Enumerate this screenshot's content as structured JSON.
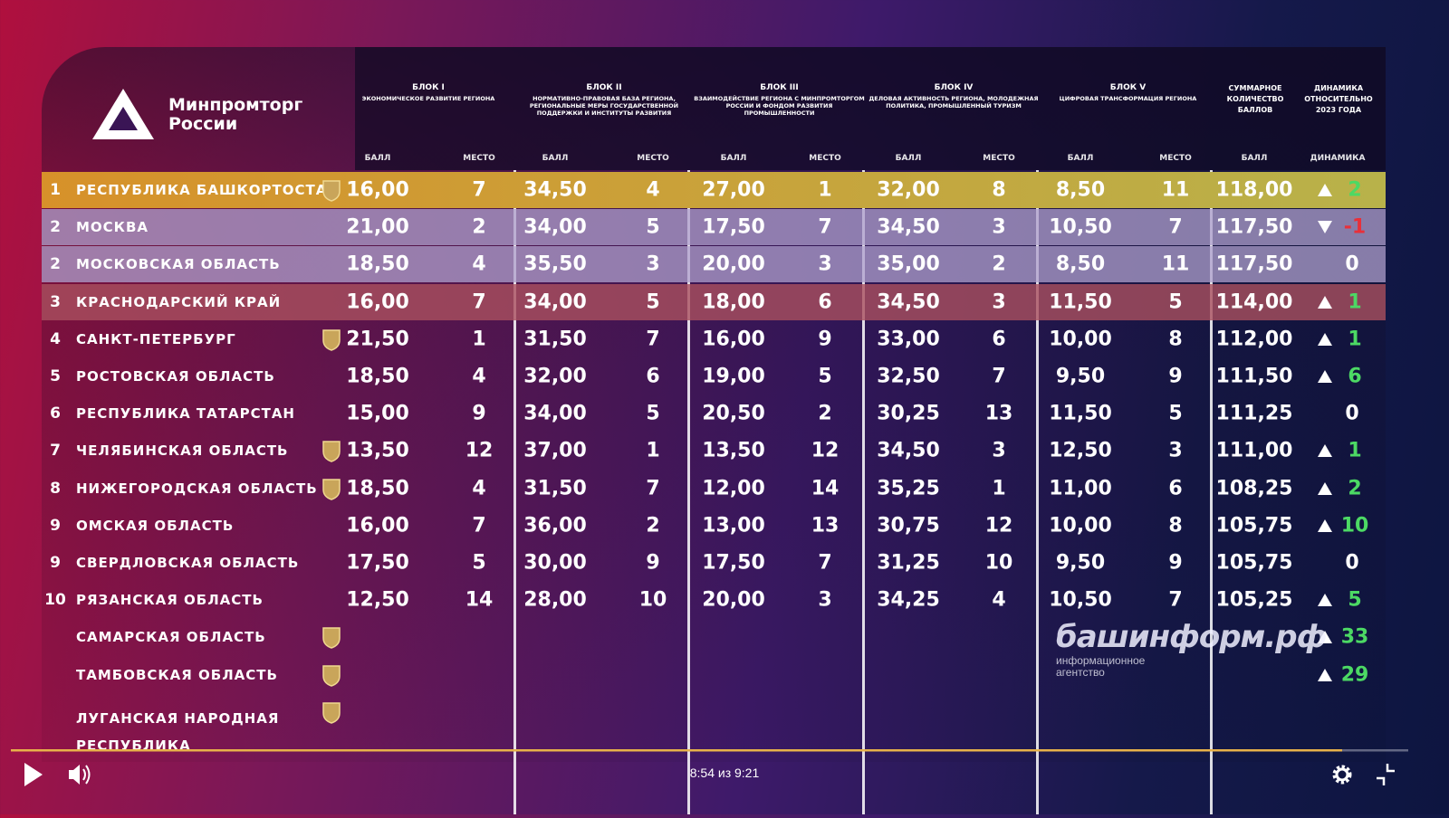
{
  "logo": {
    "line1": "Минпромторг",
    "line2": "России"
  },
  "watermark": {
    "name": "башинформ.рф",
    "tagline": "информационное агентство"
  },
  "player": {
    "time": "8:54 из 9:21"
  },
  "table": {
    "blocks": [
      {
        "title": "БЛОК I",
        "subtitle": "ЭКОНОМИЧЕСКОЕ РАЗВИТИЕ РЕГИОНА"
      },
      {
        "title": "БЛОК II",
        "subtitle": "НОРМАТИВНО-ПРАВОВАЯ БАЗА РЕГИОНА, РЕГИОНАЛЬНЫЕ МЕРЫ ГОСУДАРСТВЕННОЙ ПОДДЕРЖКИ И ИНСТИТУТЫ РАЗВИТИЯ"
      },
      {
        "title": "БЛОК III",
        "subtitle": "ВЗАИМОДЕЙСТВИЕ РЕГИОНА С МИНПРОМТОРГОМ РОССИИ И ФОНДОМ РАЗВИТИЯ ПРОМЫШЛЕННОСТИ"
      },
      {
        "title": "БЛОК IV",
        "subtitle": "ДЕЛОВАЯ АКТИВНОСТЬ РЕГИОНА, МОЛОДЕЖНАЯ ПОЛИТИКА, ПРОМЫШЛЕННЫЙ ТУРИЗМ"
      },
      {
        "title": "БЛОК V",
        "subtitle": "ЦИФРОВАЯ ТРАНСФОРМАЦИЯ РЕГИОНА"
      }
    ],
    "total_header": "СУММАРНОЕ КОЛИЧЕСТВО БАЛЛОВ",
    "dynamics_header": "ДИНАМИКА ОТНОСИТЕЛЬНО 2023 ГОДА",
    "subheaders": [
      "БАЛЛ",
      "МЕСТО",
      "БАЛЛ",
      "МЕСТО",
      "БАЛЛ",
      "МЕСТО",
      "БАЛЛ",
      "МЕСТО",
      "БАЛЛ",
      "МЕСТО",
      "БАЛЛ",
      "ДИНАМИКА"
    ],
    "rows": [
      {
        "rank": 1,
        "name": "РЕСПУБЛИКА БАШКОРТОСТАН",
        "scores": [
          "16,00",
          7,
          "34,50",
          4,
          "27,00",
          1,
          "32,00",
          8,
          "8,50",
          11,
          "118,00"
        ],
        "dynamics": 2
      },
      {
        "rank": 2,
        "name": "МОСКВА",
        "scores": [
          "21,00",
          2,
          "34,00",
          5,
          "17,50",
          7,
          "34,50",
          3,
          "10,50",
          7,
          "117,50"
        ],
        "dynamics": -1
      },
      {
        "rank": 2,
        "name": "МОСКОВСКАЯ ОБЛАСТЬ",
        "scores": [
          "18,50",
          4,
          "35,50",
          3,
          "20,00",
          3,
          "35,00",
          2,
          "8,50",
          11,
          "117,50"
        ],
        "dynamics": 0
      },
      {
        "rank": 3,
        "name": "КРАСНОДАРСКИЙ КРАЙ",
        "scores": [
          "16,00",
          7,
          "34,00",
          5,
          "18,00",
          6,
          "34,50",
          3,
          "11,50",
          5,
          "114,00"
        ],
        "dynamics": 1
      },
      {
        "rank": 4,
        "name": "САНКТ-ПЕТЕРБУРГ",
        "scores": [
          "21,50",
          1,
          "31,50",
          7,
          "16,00",
          9,
          "33,00",
          6,
          "10,00",
          8,
          "112,00"
        ],
        "dynamics": 1
      },
      {
        "rank": 5,
        "name": "РОСТОВСКАЯ ОБЛАСТЬ",
        "scores": [
          "18,50",
          4,
          "32,00",
          6,
          "19,00",
          5,
          "32,50",
          7,
          "9,50",
          9,
          "111,50"
        ],
        "dynamics": 6
      },
      {
        "rank": 6,
        "name": "РЕСПУБЛИКА ТАТАРСТАН",
        "scores": [
          "15,00",
          9,
          "34,00",
          5,
          "20,50",
          2,
          "30,25",
          13,
          "11,50",
          5,
          "111,25"
        ],
        "dynamics": 0
      },
      {
        "rank": 7,
        "name": "ЧЕЛЯБИНСКАЯ ОБЛАСТЬ",
        "scores": [
          "13,50",
          12,
          "37,00",
          1,
          "13,50",
          12,
          "34,50",
          3,
          "12,50",
          3,
          "111,00"
        ],
        "dynamics": 1
      },
      {
        "rank": 8,
        "name": "НИЖЕГОРОДСКАЯ ОБЛАСТЬ",
        "scores": [
          "18,50",
          4,
          "31,50",
          7,
          "12,00",
          14,
          "35,25",
          1,
          "11,00",
          6,
          "108,25"
        ],
        "dynamics": 2
      },
      {
        "rank": 9,
        "name": "ОМСКАЯ ОБЛАСТЬ",
        "scores": [
          "16,00",
          7,
          "36,00",
          2,
          "13,00",
          13,
          "30,75",
          12,
          "10,00",
          8,
          "105,75"
        ],
        "dynamics": 10
      },
      {
        "rank": 9,
        "name": "СВЕРДЛОВСКАЯ ОБЛАСТЬ",
        "scores": [
          "17,50",
          5,
          "30,00",
          9,
          "17,50",
          7,
          "31,25",
          10,
          "9,50",
          9,
          "105,75"
        ],
        "dynamics": 0
      },
      {
        "rank": 10,
        "name": "РЯЗАНСКАЯ ОБЛАСТЬ",
        "scores": [
          "12,50",
          14,
          "28,00",
          10,
          "20,00",
          3,
          "34,25",
          4,
          "10,50",
          7,
          "105,25"
        ],
        "dynamics": 5
      },
      {
        "name": "САМАРСКАЯ ОБЛАСТЬ",
        "dynamics": 33
      },
      {
        "name": "ТАМБОВСКАЯ ОБЛАСТЬ",
        "dynamics": 29
      },
      {
        "name": "ЛУГАНСКАЯ НАРОДНАЯ РЕСПУБЛИКА"
      }
    ]
  }
}
